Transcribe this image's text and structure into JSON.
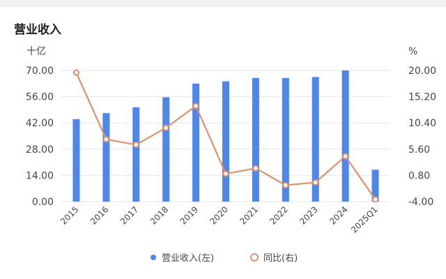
{
  "title": "营业收入",
  "chart_data": {
    "type": "bar+line",
    "categories": [
      "2015",
      "2016",
      "2017",
      "2018",
      "2019",
      "2020",
      "2021",
      "2022",
      "2023",
      "2024",
      "2025Q1"
    ],
    "series": [
      {
        "name": "营业收入(左)",
        "type": "bar",
        "axis": "left",
        "color": "#4e86ea",
        "values": [
          44.0,
          47.2,
          50.3,
          55.7,
          63.0,
          64.2,
          66.0,
          66.0,
          66.5,
          70.0,
          17.0
        ]
      },
      {
        "name": "同比(右)",
        "type": "line",
        "axis": "right",
        "color": "#e0906a",
        "values": [
          19.6,
          7.4,
          6.4,
          9.5,
          13.5,
          1.1,
          2.1,
          -1.0,
          -0.5,
          4.3,
          -3.6
        ]
      }
    ],
    "left_axis": {
      "unit": "十亿",
      "ylim": [
        0,
        70
      ],
      "ticks": [
        "0.00",
        "14.00",
        "28.00",
        "42.00",
        "56.00",
        "70.00"
      ]
    },
    "right_axis": {
      "unit": "%",
      "ylim": [
        -4,
        20
      ],
      "ticks": [
        "-4.00",
        "0.80",
        "5.60",
        "10.40",
        "15.20",
        "20.00"
      ]
    },
    "legend": {
      "placement": "bottom"
    }
  }
}
